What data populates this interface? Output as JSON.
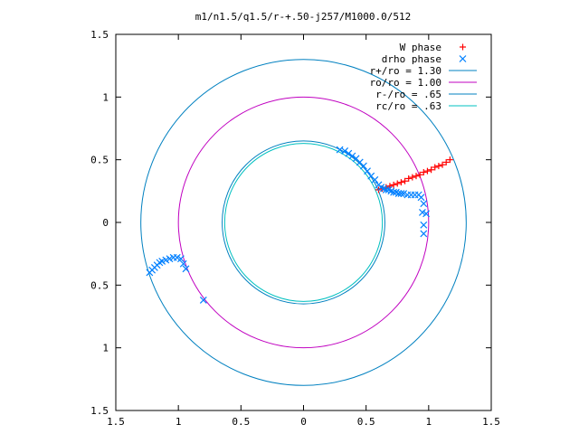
{
  "chart_data": {
    "type": "scatter",
    "title": "m1/n1.5/q1.5/r-+.50-j257/M1000.0/512",
    "xlabel": "",
    "ylabel": "",
    "xlim": [
      -1.5,
      1.5
    ],
    "ylim": [
      -1.5,
      1.5
    ],
    "x_ticks": [
      -1.5,
      -1,
      -0.5,
      0,
      0.5,
      1,
      1.5
    ],
    "y_ticks": [
      -1.5,
      -1,
      -0.5,
      0,
      0.5,
      1,
      1.5
    ],
    "x_tick_labels": [
      "1.5",
      "1",
      "0.5",
      "0",
      "0.5",
      "1",
      "1.5"
    ],
    "y_tick_labels": [
      "1.5",
      "1",
      "0.5",
      "0",
      "0.5",
      "1",
      "1.5"
    ],
    "grid": false,
    "legend_position": "top-right",
    "series": [
      {
        "name": "W phase",
        "marker": "+",
        "color": "#ff0000",
        "points": [
          [
            0.6,
            0.26
          ],
          [
            0.63,
            0.27
          ],
          [
            0.66,
            0.28
          ],
          [
            0.69,
            0.29
          ],
          [
            0.72,
            0.3
          ],
          [
            0.75,
            0.31
          ],
          [
            0.78,
            0.32
          ],
          [
            0.81,
            0.33
          ],
          [
            0.84,
            0.35
          ],
          [
            0.87,
            0.36
          ],
          [
            0.9,
            0.37
          ],
          [
            0.93,
            0.38
          ],
          [
            0.96,
            0.4
          ],
          [
            0.99,
            0.41
          ],
          [
            1.02,
            0.42
          ],
          [
            1.05,
            0.44
          ],
          [
            1.08,
            0.45
          ],
          [
            1.11,
            0.46
          ],
          [
            1.14,
            0.48
          ],
          [
            1.17,
            0.5
          ]
        ]
      },
      {
        "name": "drho phase",
        "marker": "x",
        "color": "#0080ff",
        "points": [
          [
            0.29,
            0.58
          ],
          [
            0.33,
            0.57
          ],
          [
            0.36,
            0.55
          ],
          [
            0.39,
            0.53
          ],
          [
            0.42,
            0.51
          ],
          [
            0.45,
            0.48
          ],
          [
            0.48,
            0.45
          ],
          [
            0.51,
            0.41
          ],
          [
            0.54,
            0.37
          ],
          [
            0.57,
            0.34
          ],
          [
            0.6,
            0.3
          ],
          [
            0.62,
            0.28
          ],
          [
            0.64,
            0.27
          ],
          [
            0.66,
            0.26
          ],
          [
            0.68,
            0.26
          ],
          [
            0.7,
            0.25
          ],
          [
            0.72,
            0.24
          ],
          [
            0.74,
            0.24
          ],
          [
            0.76,
            0.23
          ],
          [
            0.78,
            0.23
          ],
          [
            0.8,
            0.23
          ],
          [
            0.83,
            0.22
          ],
          [
            0.86,
            0.22
          ],
          [
            0.89,
            0.22
          ],
          [
            0.92,
            0.22
          ],
          [
            0.94,
            0.2
          ],
          [
            0.96,
            0.15
          ],
          [
            0.98,
            0.07
          ],
          [
            0.96,
            -0.09
          ],
          [
            0.96,
            -0.02
          ],
          [
            0.95,
            0.08
          ],
          [
            -1.23,
            -0.4
          ],
          [
            -1.21,
            -0.38
          ],
          [
            -1.19,
            -0.36
          ],
          [
            -1.17,
            -0.34
          ],
          [
            -1.15,
            -0.32
          ],
          [
            -1.13,
            -0.31
          ],
          [
            -1.1,
            -0.3
          ],
          [
            -1.07,
            -0.29
          ],
          [
            -1.04,
            -0.28
          ],
          [
            -1.01,
            -0.28
          ],
          [
            -0.98,
            -0.29
          ],
          [
            -0.96,
            -0.33
          ],
          [
            -0.94,
            -0.37
          ],
          [
            -0.8,
            -0.62
          ]
        ]
      },
      {
        "name": "r+/ro = 1.30",
        "type": "circle",
        "radius": 1.3,
        "color": "#0080c0"
      },
      {
        "name": "ro/ro = 1.00",
        "type": "circle",
        "radius": 1.0,
        "color": "#c000c0"
      },
      {
        "name": "r-/ro = .65",
        "type": "circle",
        "radius": 0.65,
        "color": "#0080c0"
      },
      {
        "name": "rc/ro = .63",
        "type": "circle",
        "radius": 0.63,
        "color": "#00c0c0"
      }
    ]
  }
}
